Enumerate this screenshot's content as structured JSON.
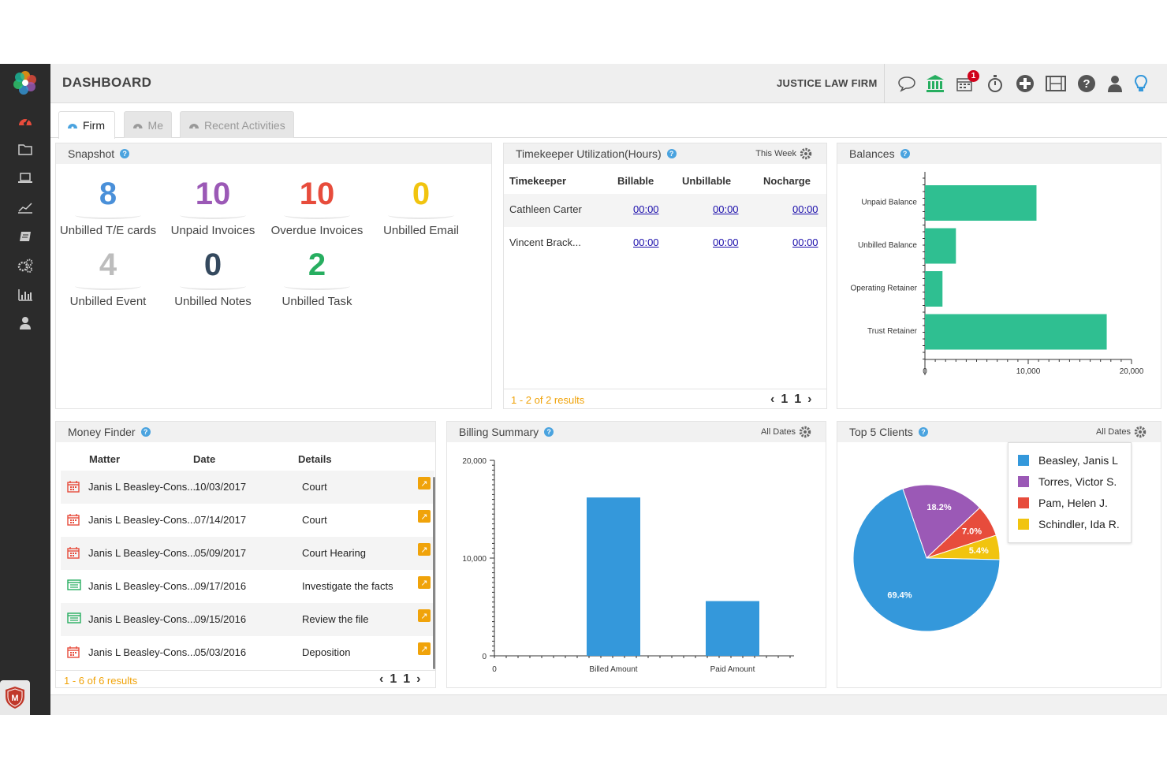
{
  "header": {
    "title": "DASHBOARD",
    "firm_name": "JUSTICE LAW FIRM",
    "notification_count": "1"
  },
  "top_icons": [
    "chat-icon",
    "bank-icon",
    "calendar-icon",
    "stopwatch-icon",
    "add-icon",
    "film-icon",
    "help-icon",
    "user-icon",
    "lightbulb-icon"
  ],
  "sidebar": [
    "dashboard-icon",
    "folder-icon",
    "laptop-icon",
    "chart-line-icon",
    "book-icon",
    "gears-icon",
    "bar-chart-icon",
    "user-icon"
  ],
  "tabs": [
    {
      "label": "Firm"
    },
    {
      "label": "Me"
    },
    {
      "label": "Recent Activities"
    }
  ],
  "snapshot": {
    "title": "Snapshot",
    "items": [
      {
        "value": "8",
        "label": "Unbilled T/E cards",
        "color": "#4a90d9"
      },
      {
        "value": "10",
        "label": "Unpaid Invoices",
        "color": "#9b59b6"
      },
      {
        "value": "10",
        "label": "Overdue Invoices",
        "color": "#e74c3c"
      },
      {
        "value": "0",
        "label": "Unbilled Email",
        "color": "#f1c40f"
      },
      {
        "value": "4",
        "label": "Unbilled Event",
        "color": "#bdbdbd"
      },
      {
        "value": "0",
        "label": "Unbilled Notes",
        "color": "#34495e"
      },
      {
        "value": "2",
        "label": "Unbilled Task",
        "color": "#27ae60"
      }
    ]
  },
  "timekeeper": {
    "title": "Timekeeper Utilization(Hours)",
    "period": "This Week",
    "columns": [
      "Timekeeper",
      "Billable",
      "Unbillable",
      "Nocharge"
    ],
    "rows": [
      {
        "name": "Cathleen Carter",
        "billable": "00:00",
        "unbillable": "00:00",
        "nocharge": "00:00"
      },
      {
        "name": "Vincent Brack...",
        "billable": "00:00",
        "unbillable": "00:00",
        "nocharge": "00:00"
      }
    ],
    "results": "1 - 2 of 2 results",
    "page_first": "1",
    "page_last": "1"
  },
  "balances": {
    "title": "Balances"
  },
  "money_finder": {
    "title": "Money Finder",
    "columns": [
      "Matter",
      "Date",
      "Details"
    ],
    "rows": [
      {
        "icon": "calendar-icon",
        "matter": "Janis L Beasley-Cons...",
        "date": "10/03/2017",
        "details": "Court"
      },
      {
        "icon": "calendar-icon",
        "matter": "Janis L Beasley-Cons...",
        "date": "07/14/2017",
        "details": "Court"
      },
      {
        "icon": "calendar-icon",
        "matter": "Janis L Beasley-Cons...",
        "date": "05/09/2017",
        "details": "Court Hearing"
      },
      {
        "icon": "task-list-icon",
        "matter": "Janis L Beasley-Cons...",
        "date": "09/17/2016",
        "details": "Investigate the facts"
      },
      {
        "icon": "task-list-icon",
        "matter": "Janis L Beasley-Cons...",
        "date": "09/15/2016",
        "details": "Review the file"
      },
      {
        "icon": "calendar-icon",
        "matter": "Janis L Beasley-Cons...",
        "date": "05/03/2016",
        "details": "Deposition"
      }
    ],
    "results": "1 - 6 of 6 results",
    "page_first": "1",
    "page_last": "1"
  },
  "billing_summary": {
    "title": "Billing Summary",
    "period": "All Dates"
  },
  "top_clients": {
    "title": "Top 5 Clients",
    "period": "All Dates"
  },
  "chart_data": [
    {
      "type": "bar",
      "orientation": "horizontal",
      "categories": [
        "Unpaid Balance",
        "Unbilled Balance",
        "Operating Retainer",
        "Trust Retainer"
      ],
      "values": [
        10800,
        3000,
        1700,
        17600
      ],
      "xlim": [
        0,
        20000
      ],
      "xticks": [
        "0",
        "10,000",
        "20,000"
      ],
      "color": "#2fbf91"
    },
    {
      "type": "bar",
      "categories": [
        "Billed Amount",
        "Paid Amount"
      ],
      "values": [
        16200,
        5600
      ],
      "ylim": [
        0,
        20000
      ],
      "yticks": [
        "0",
        "10,000",
        "20,000"
      ],
      "xorigin_label": "0",
      "color": "#3498db"
    },
    {
      "type": "pie",
      "labels": [
        "Beasley, Janis L",
        "Torres, Victor S.",
        "Pam, Helen J.",
        "Schindler, Ida R."
      ],
      "values": [
        69.4,
        18.2,
        7.0,
        5.4
      ],
      "value_labels": [
        "69.4%",
        "18.2%",
        "7.0%",
        "5.4%"
      ],
      "colors": [
        "#3498db",
        "#9b59b6",
        "#e74c3c",
        "#f1c40f"
      ]
    }
  ]
}
